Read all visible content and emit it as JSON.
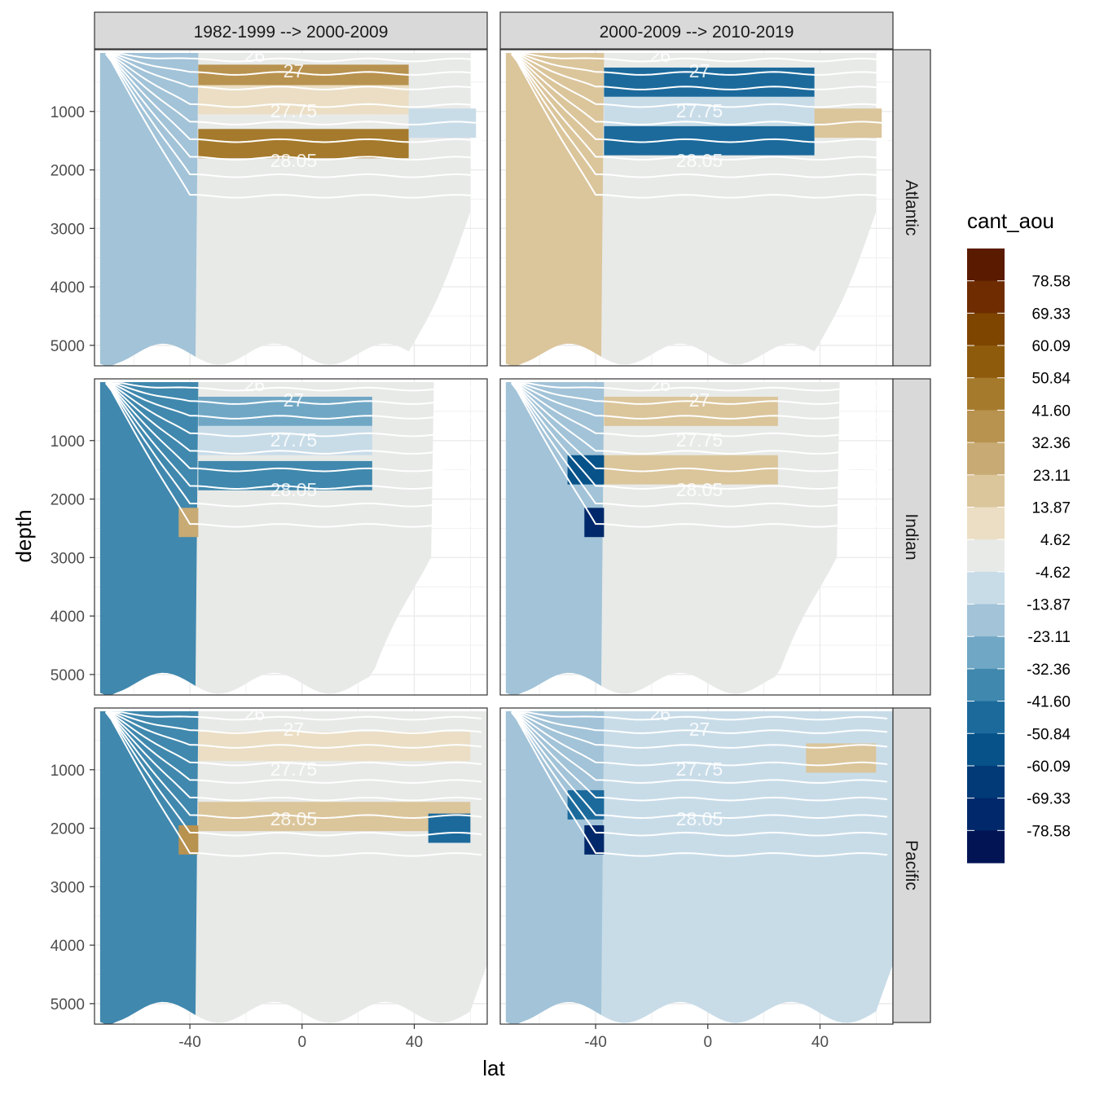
{
  "chart_data": {
    "type": "heatmap",
    "title": "",
    "xlabel": "lat",
    "ylabel": "depth",
    "xlim": [
      -74,
      66
    ],
    "ylim": [
      5350,
      0
    ],
    "x_ticks": [
      -40,
      0,
      40
    ],
    "y_ticks": [
      1000,
      2000,
      3000,
      4000,
      5000
    ],
    "columns": [
      "1982-1999 --> 2000-2009",
      "2000-2009 --> 2010-2019"
    ],
    "rows": [
      "Atlantic",
      "Indian",
      "Pacific"
    ],
    "isopycnal_labels": [
      "26",
      "27",
      "27.75",
      "28.05"
    ],
    "legend": {
      "title": "cant_aou",
      "breaks": [
        "78.58",
        "69.33",
        "60.09",
        "50.84",
        "41.60",
        "32.36",
        "23.11",
        "13.87",
        "4.62",
        "-4.62",
        "-13.87",
        "-23.11",
        "-32.36",
        "-41.60",
        "-50.84",
        "-60.09",
        "-69.33",
        "-78.58"
      ],
      "colors": [
        "#5a1a00",
        "#6e2c00",
        "#7e4500",
        "#8e5b0d",
        "#a57a2c",
        "#b8924f",
        "#c8aa74",
        "#dbc59b",
        "#ebdec4",
        "#e8eae8",
        "#c8dce8",
        "#a2c3d8",
        "#70a7c5",
        "#4088ae",
        "#1c6a9c",
        "#065289",
        "#023a78",
        "#01286a",
        "#021454"
      ]
    },
    "panels": [
      {
        "col": 0,
        "row": 0,
        "bottom_lat": 38,
        "south_value": -18,
        "surface": [
          [
            -37,
            38,
            450,
            41
          ],
          [
            -37,
            38,
            1550,
            45
          ],
          [
            -37,
            38,
            800,
            10
          ],
          [
            38,
            62,
            1200,
            -8
          ]
        ],
        "deep": -2
      },
      {
        "col": 1,
        "row": 0,
        "bottom_lat": 38,
        "south_value": 20,
        "surface": [
          [
            -37,
            38,
            500,
            -50
          ],
          [
            -37,
            38,
            1500,
            -45
          ],
          [
            -37,
            38,
            1000,
            -12
          ],
          [
            38,
            62,
            1200,
            15
          ]
        ],
        "deep": -2
      },
      {
        "col": 0,
        "row": 1,
        "bottom_lat": 25,
        "south_value": -38,
        "surface": [
          [
            -37,
            25,
            500,
            -25
          ],
          [
            -37,
            25,
            1600,
            -35
          ],
          [
            -37,
            25,
            1000,
            -12
          ],
          [
            -44,
            -37,
            2400,
            30
          ]
        ],
        "deep": -4
      },
      {
        "col": 1,
        "row": 1,
        "bottom_lat": 25,
        "south_value": -22,
        "surface": [
          [
            -37,
            25,
            500,
            14
          ],
          [
            -37,
            25,
            1500,
            22
          ],
          [
            -50,
            -37,
            1500,
            -60
          ],
          [
            -44,
            -37,
            2400,
            -75
          ]
        ],
        "deep": 0
      },
      {
        "col": 0,
        "row": 2,
        "bottom_lat": 60,
        "south_value": -35,
        "surface": [
          [
            -37,
            60,
            600,
            12
          ],
          [
            -37,
            60,
            1800,
            18
          ],
          [
            -44,
            -37,
            2200,
            35
          ],
          [
            45,
            60,
            2000,
            -45
          ]
        ],
        "deep": -2
      },
      {
        "col": 1,
        "row": 2,
        "bottom_lat": 60,
        "south_value": -18,
        "surface": [
          [
            -37,
            35,
            600,
            -10
          ],
          [
            35,
            60,
            800,
            15
          ],
          [
            -50,
            -37,
            1600,
            -50
          ],
          [
            -44,
            -37,
            2200,
            -75
          ]
        ],
        "deep": -5
      }
    ]
  }
}
